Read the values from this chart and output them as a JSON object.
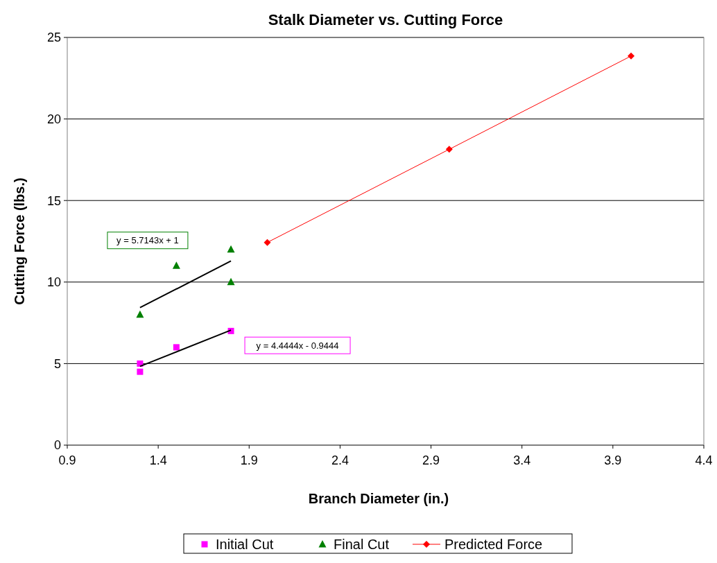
{
  "chart_data": {
    "type": "scatter",
    "title": "Stalk Diameter vs. Cutting Force",
    "xlabel": "Branch Diameter (in.)",
    "ylabel": "Cutting Force (lbs.)",
    "xlim": [
      0.9,
      4.4
    ],
    "xticks": [
      0.9,
      1.4,
      1.9,
      2.4,
      2.9,
      3.4,
      3.9,
      4.4
    ],
    "ylim": [
      0,
      25
    ],
    "yticks": [
      0,
      5,
      10,
      15,
      20,
      25
    ],
    "grid": "y",
    "legend": "bottom",
    "series": [
      {
        "name": "Initial Cut",
        "type": "scatter",
        "marker": "square",
        "color": "#ff00ff",
        "x": [
          1.3,
          1.3,
          1.5,
          1.8
        ],
        "values": [
          4.5,
          5,
          6,
          7
        ]
      },
      {
        "name": "Final Cut",
        "type": "scatter",
        "marker": "triangle",
        "color": "#008000",
        "x": [
          1.3,
          1.5,
          1.8,
          1.8
        ],
        "values": [
          8,
          11,
          12,
          10
        ]
      },
      {
        "name": "Predicted Force",
        "type": "line",
        "marker": "diamond",
        "color": "#ff0000",
        "x": [
          2.0,
          3.0,
          4.0
        ],
        "values": [
          12.43,
          18.14,
          23.86
        ]
      },
      {
        "type": "line",
        "marker": "none",
        "color": "#000000",
        "x": [
          1.3,
          1.8
        ],
        "values": [
          4.83,
          7.05
        ]
      },
      {
        "type": "line",
        "marker": "none",
        "color": "#000000",
        "x": [
          1.3,
          1.8
        ],
        "values": [
          8.43,
          11.29
        ]
      }
    ],
    "annotations": [
      "y = 4.4444x - 0.9444",
      "y = 5.7143x + 1"
    ]
  }
}
